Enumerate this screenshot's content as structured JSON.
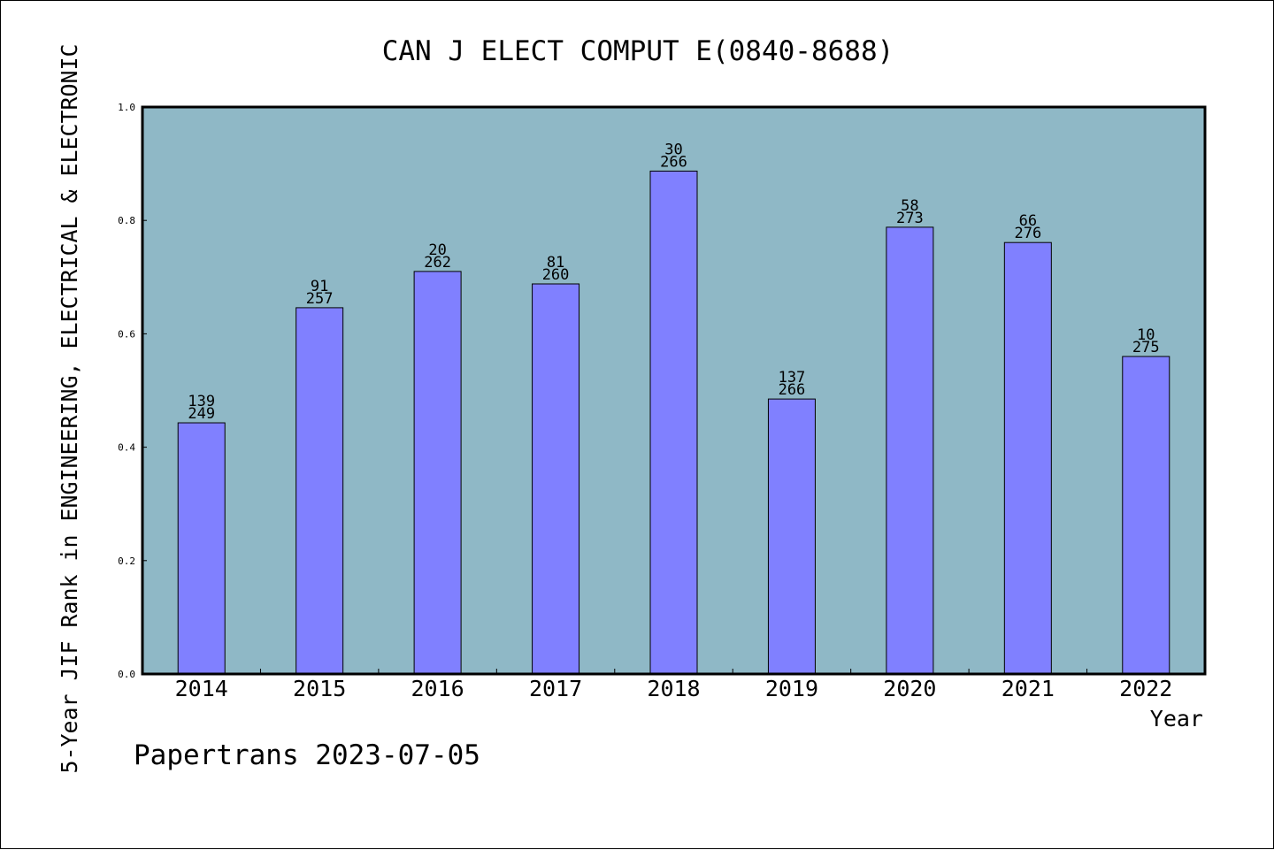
{
  "chart_data": {
    "type": "bar",
    "title": "CAN J ELECT COMPUT E(0840-8688)",
    "xlabel": "Year",
    "ylabel": "5-Year JIF Rank in ENGINEERING, ELECTRICAL & ELECTRONIC",
    "ylim": [
      0,
      1.0
    ],
    "yticks": [
      "0.0",
      "0.2",
      "0.4",
      "0.6",
      "0.8",
      "1.0"
    ],
    "grid": false,
    "categories": [
      "2014",
      "2015",
      "2016",
      "2017",
      "2018",
      "2019",
      "2020",
      "2021",
      "2022"
    ],
    "values": [
      0.443,
      0.646,
      0.71,
      0.688,
      0.887,
      0.485,
      0.788,
      0.761,
      0.56
    ],
    "rank_labels": [
      "139",
      "91",
      "20",
      "81",
      "30",
      "137",
      "58",
      "66",
      "10"
    ],
    "total_labels": [
      "249",
      "257",
      "262",
      "260",
      "266",
      "266",
      "273",
      "276",
      "275"
    ],
    "colors": {
      "plot_background": "#8fb8c6",
      "bar_fill": "#8080ff",
      "bar_stroke": "#000000",
      "axis": "#000000"
    }
  },
  "footer": {
    "source": "Papertrans 2023-07-05"
  }
}
